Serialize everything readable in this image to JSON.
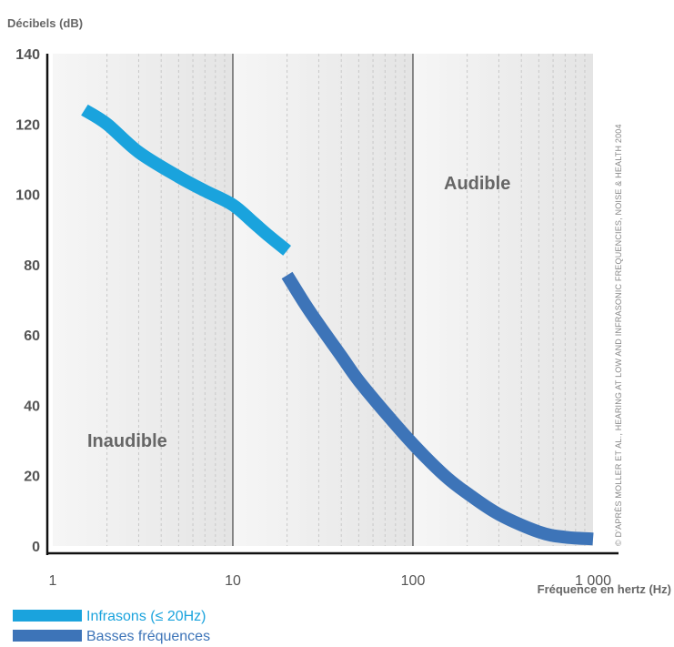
{
  "chart_data": {
    "type": "line",
    "ylabel": "Décibels (dB)",
    "xlabel": "Fréquence en hertz (Hz)",
    "x_scale": "log",
    "xlim": [
      1,
      1000
    ],
    "ylim": [
      0,
      140
    ],
    "x_ticks": [
      {
        "value": 1,
        "label": "1"
      },
      {
        "value": 10,
        "label": "10"
      },
      {
        "value": 100,
        "label": "100"
      },
      {
        "value": 1000,
        "label": "1 000"
      }
    ],
    "y_ticks": [
      {
        "value": 0,
        "label": "0"
      },
      {
        "value": 20,
        "label": "20"
      },
      {
        "value": 40,
        "label": "40"
      },
      {
        "value": 60,
        "label": "60"
      },
      {
        "value": 80,
        "label": "80"
      },
      {
        "value": 100,
        "label": "100"
      },
      {
        "value": 120,
        "label": "120"
      },
      {
        "value": 140,
        "label": "140"
      }
    ],
    "region_labels": {
      "inaudible": "Inaudible",
      "audible": "Audible"
    },
    "credit": "© D'APRÈS MOLLER ET AL., HEARING AT LOW AND INFRASONIC FREQUENCIES, NOISE & HEALTH 2004",
    "series": [
      {
        "name": "Infrasons (≤ 20Hz)",
        "color": "#1aa3dd",
        "points": [
          [
            1.5,
            124
          ],
          [
            2,
            120
          ],
          [
            3,
            112
          ],
          [
            5,
            105
          ],
          [
            7,
            101
          ],
          [
            10,
            97
          ],
          [
            13,
            92
          ],
          [
            16,
            88
          ],
          [
            20,
            84
          ]
        ]
      },
      {
        "name": "Basses fréquences",
        "color": "#3d74b8",
        "points": [
          [
            20,
            77
          ],
          [
            25,
            69
          ],
          [
            30,
            63
          ],
          [
            40,
            54
          ],
          [
            50,
            47
          ],
          [
            70,
            38
          ],
          [
            100,
            29
          ],
          [
            150,
            20
          ],
          [
            200,
            15
          ],
          [
            300,
            9
          ],
          [
            500,
            4
          ],
          [
            700,
            2.5
          ],
          [
            1000,
            2
          ]
        ]
      }
    ],
    "grid": true,
    "legend_position": "bottom-left"
  }
}
